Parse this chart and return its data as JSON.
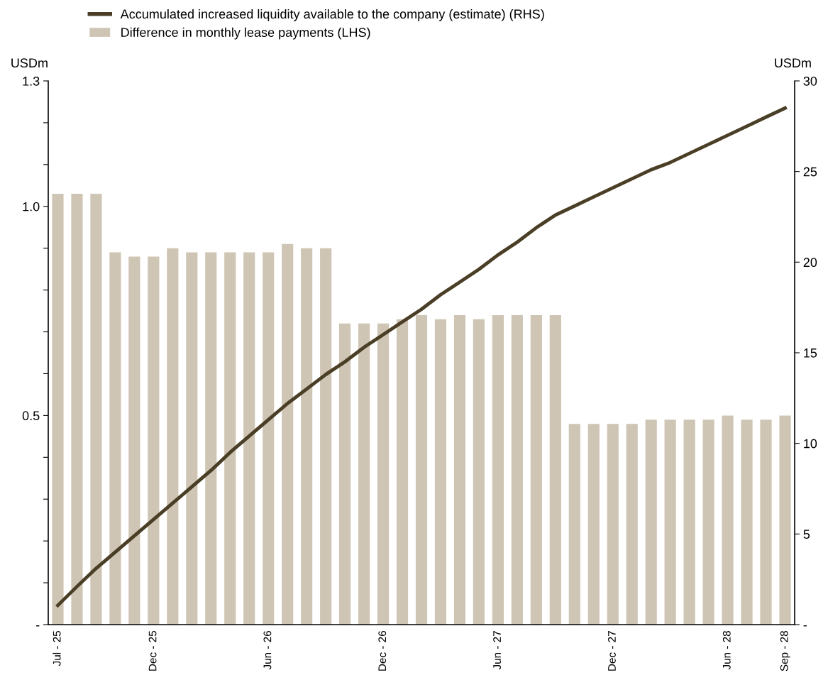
{
  "chart_data": {
    "type": "bar",
    "categories": [
      "Jul - 25",
      null,
      null,
      null,
      null,
      "Dec - 25",
      null,
      null,
      null,
      null,
      null,
      "Jun - 26",
      null,
      null,
      null,
      null,
      null,
      "Dec - 26",
      null,
      null,
      null,
      null,
      null,
      "Jun - 27",
      null,
      null,
      null,
      null,
      null,
      "Dec - 27",
      null,
      null,
      null,
      null,
      null,
      "Jun - 28",
      null,
      null,
      "Sep - 28"
    ],
    "series": [
      {
        "name": "Accumulated increased liquidity available to the company (estimate) (RHS)",
        "type": "line",
        "axis": "y2",
        "color": "#4a3f26",
        "values": [
          1.06,
          2.1,
          3.1,
          4.0,
          4.9,
          5.8,
          6.7,
          7.6,
          8.5,
          9.5,
          10.4,
          11.3,
          12.2,
          13.0,
          13.8,
          14.5,
          15.3,
          16.0,
          16.7,
          17.4,
          18.2,
          18.9,
          19.6,
          20.4,
          21.1,
          21.9,
          22.6,
          23.1,
          23.6,
          24.1,
          24.6,
          25.1,
          25.5,
          26.0,
          26.5,
          27.0,
          27.5,
          28.0,
          28.5
        ]
      },
      {
        "name": "Difference in monthly lease payments (LHS)",
        "color": "#cfc5b4",
        "values": [
          1.03,
          1.03,
          1.03,
          0.89,
          0.88,
          0.88,
          0.9,
          0.89,
          0.89,
          0.89,
          0.89,
          0.89,
          0.91,
          0.9,
          0.9,
          0.72,
          0.72,
          0.72,
          0.73,
          0.74,
          0.73,
          0.74,
          0.73,
          0.74,
          0.74,
          0.74,
          0.74,
          0.48,
          0.48,
          0.48,
          0.48,
          0.49,
          0.49,
          0.49,
          0.49,
          0.5,
          0.49,
          0.49,
          0.5
        ]
      }
    ],
    "ylabel": "USDm",
    "y2label": "USDm",
    "ylim": [
      0,
      1.3
    ],
    "yticks": [
      {
        "value": 0,
        "label": "-"
      },
      {
        "value": 0.1,
        "label": null
      },
      {
        "value": 0.2,
        "label": null
      },
      {
        "value": 0.3,
        "label": null
      },
      {
        "value": 0.4,
        "label": null
      },
      {
        "value": 0.5,
        "label": "0.5"
      },
      {
        "value": 0.6,
        "label": null
      },
      {
        "value": 0.7,
        "label": null
      },
      {
        "value": 0.8,
        "label": null
      },
      {
        "value": 0.9,
        "label": null
      },
      {
        "value": 1.0,
        "label": "1.0"
      },
      {
        "value": 1.1,
        "label": null
      },
      {
        "value": 1.2,
        "label": null
      },
      {
        "value": 1.3,
        "label": "1.3"
      }
    ],
    "y2lim": [
      0,
      30
    ],
    "y2ticks": [
      {
        "value": 0,
        "label": "-"
      },
      5,
      10,
      15,
      20,
      25,
      30
    ],
    "legend": "top left",
    "grid": false,
    "marker": "none",
    "line_style": "solid"
  }
}
